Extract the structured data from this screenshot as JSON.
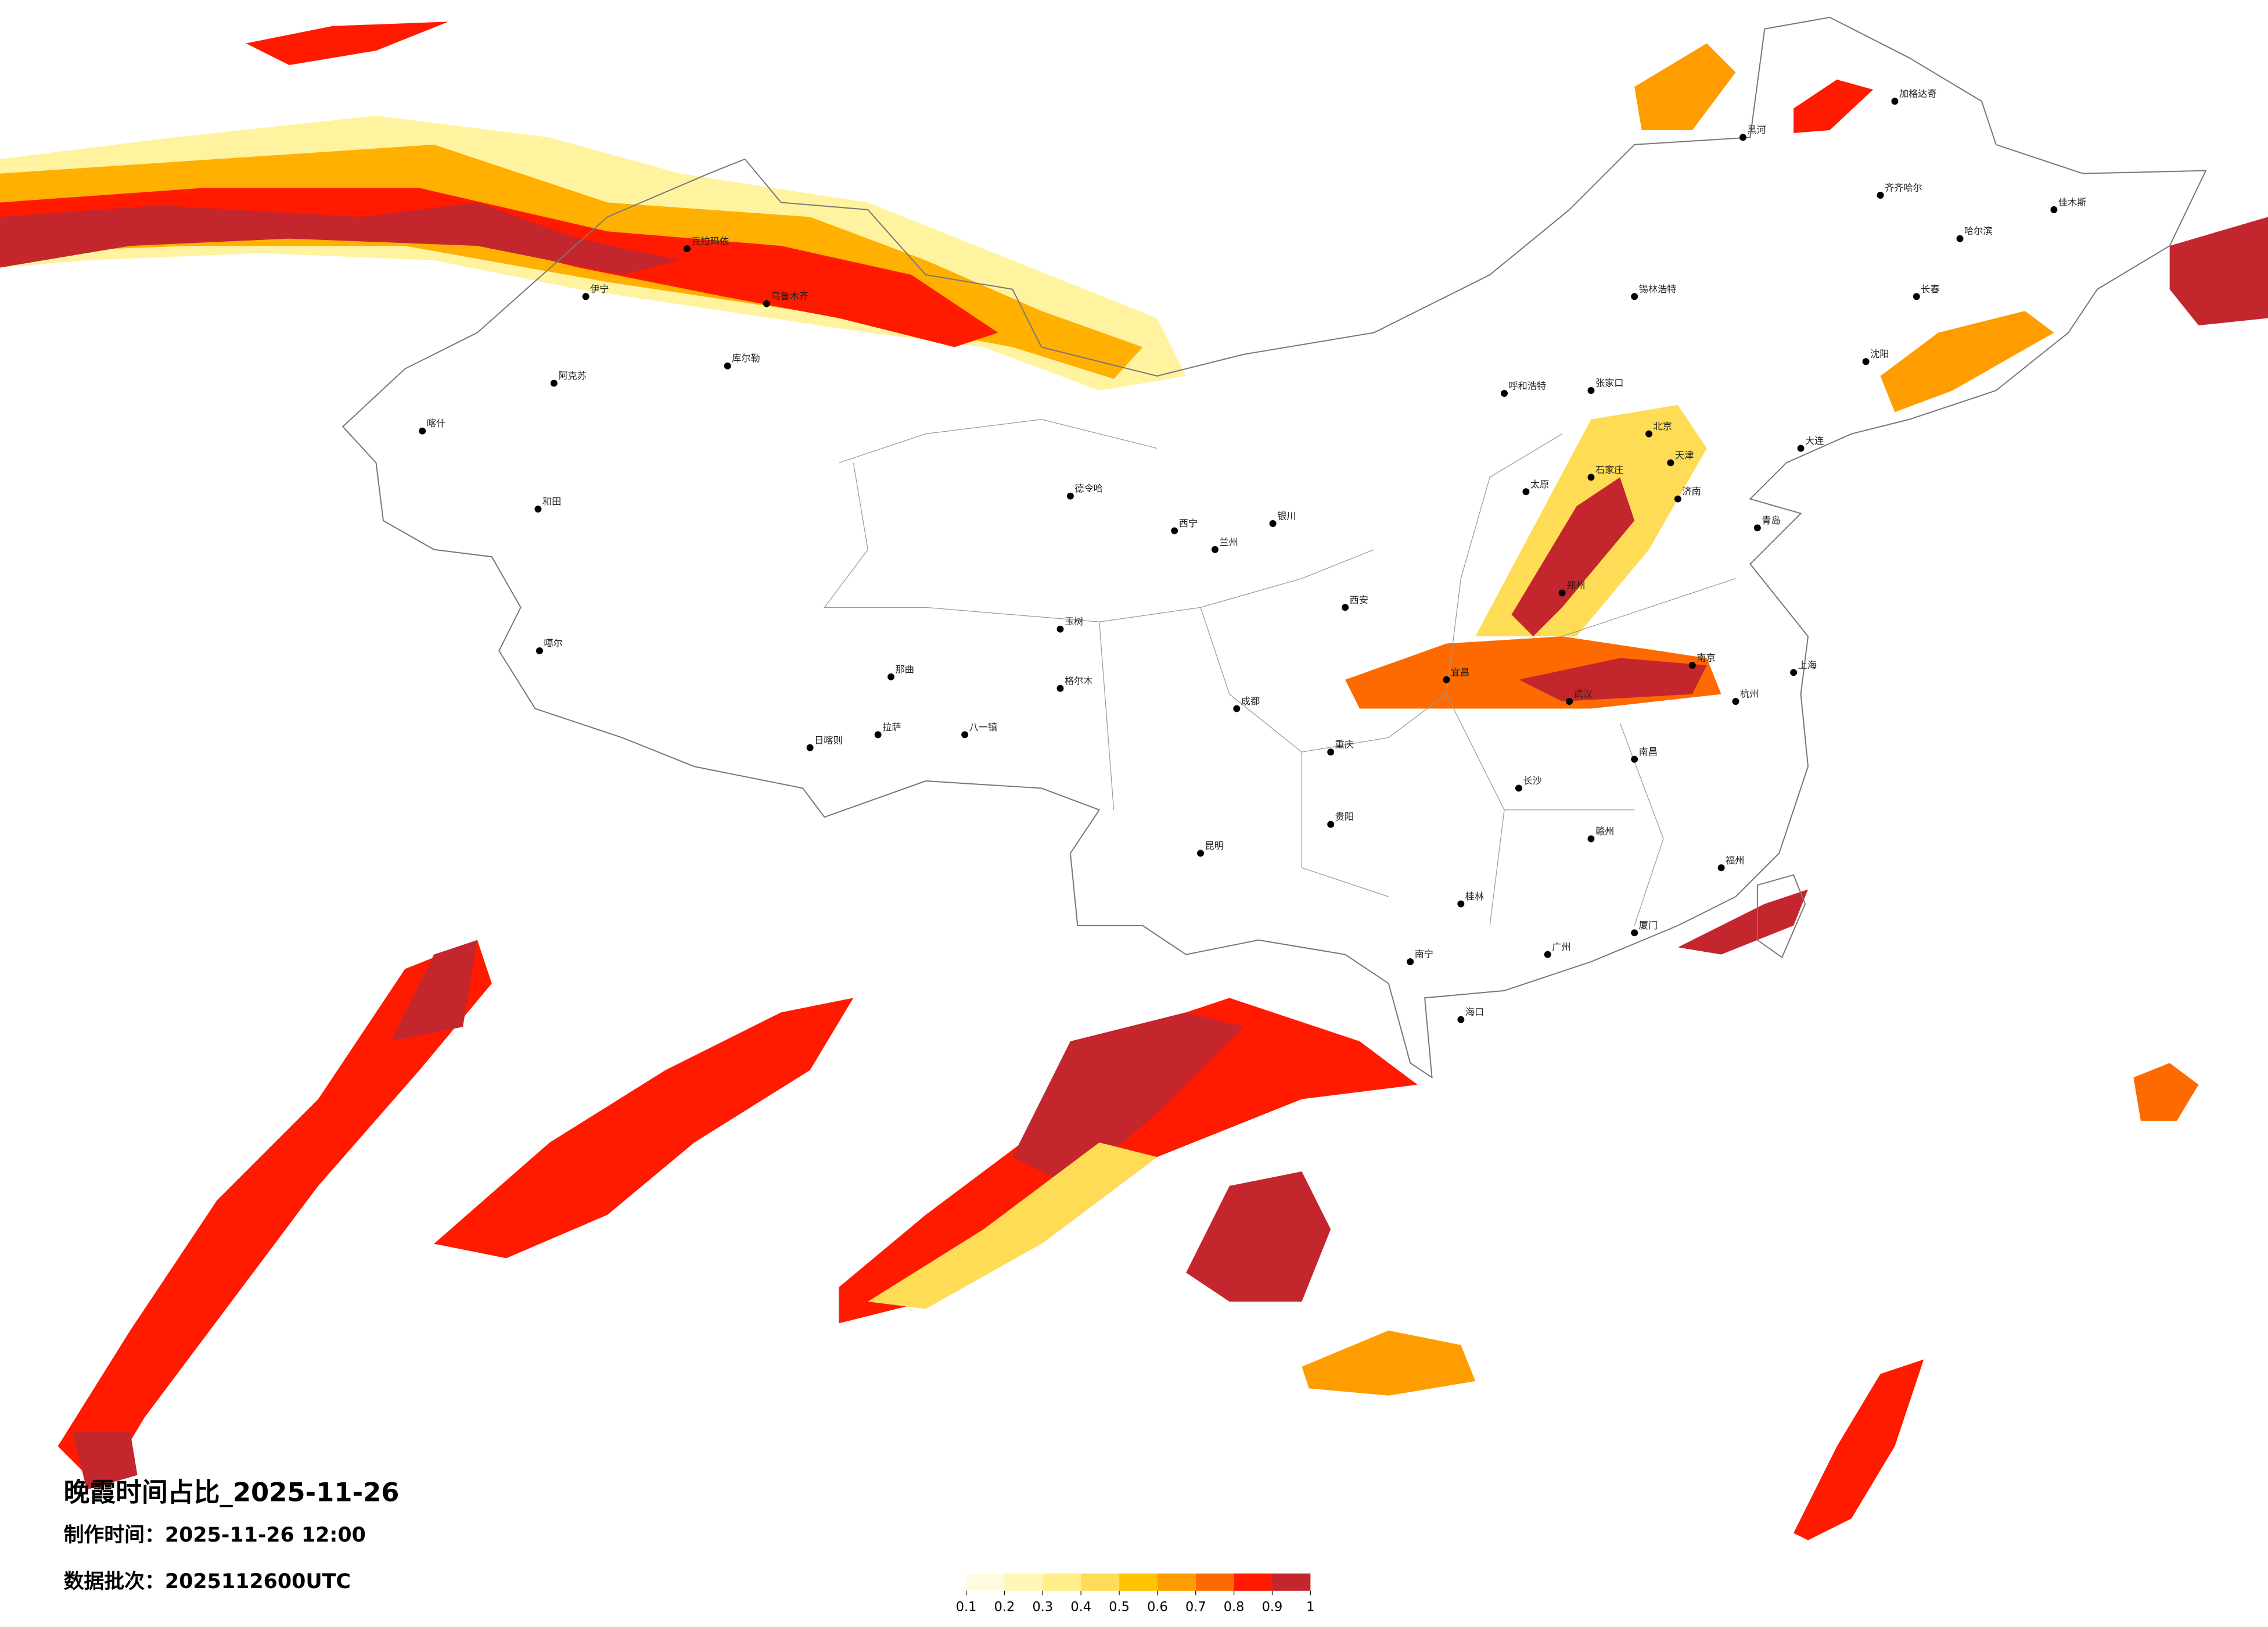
{
  "title": "晚霞时间占比_2025-11-26",
  "production_time": "制作时间：2025-11-26 12:00",
  "data_batch": "数据批次：2025112600UTC",
  "cities": [
    "伊宁",
    "克拉玛依",
    "乌鲁木齐",
    "阿克苏",
    "库尔勒",
    "喀什",
    "和田",
    "噶尔",
    "日喀则",
    "拉萨",
    "八一镇",
    "那曲",
    "格尔木",
    "玉树",
    "德令哈",
    "西宁",
    "兰州",
    "银川",
    "呼和浩特",
    "北京",
    "天津",
    "石家庄",
    "太原",
    "西安",
    "郑州",
    "济南",
    "武汉",
    "成都",
    "重庆",
    "长沙",
    "南昌",
    "杭州",
    "上海",
    "南京",
    "福州",
    "广州",
    "南宁",
    "昆明",
    "贵阳",
    "海口",
    "哈尔滨",
    "长春",
    "沈阳",
    "齐齐哈尔",
    "加格达奇",
    "锡林浩特",
    "张家口",
    "大连",
    "青岛",
    "厦门",
    "桂林",
    "赣州",
    "宜昌",
    "黑河",
    "佳木斯"
  ],
  "colorbar": {
    "ticks": [
      0.1,
      0.2,
      0.3,
      0.4,
      0.5,
      0.6,
      0.7,
      0.8,
      0.9,
      1
    ],
    "colors": [
      "#fffbe0",
      "#fff6b8",
      "#ffee8a",
      "#ffdc55",
      "#ffc400",
      "#ff9d00",
      "#ff6a00",
      "#ff1a00",
      "#c4262e"
    ]
  }
}
